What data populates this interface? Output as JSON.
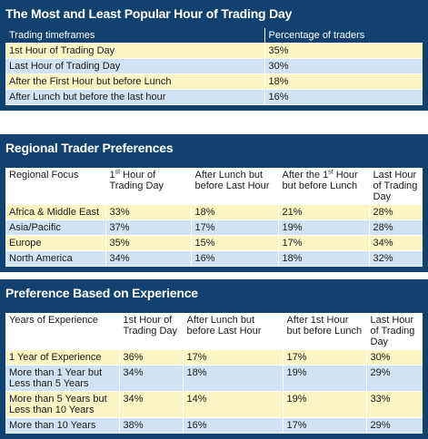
{
  "t1": {
    "title": "The Most and Least Popular Hour of Trading Day",
    "headers": [
      "Trading timeframes",
      "Percentage of traders"
    ],
    "rows": [
      [
        "1st Hour of Trading Day",
        "35%"
      ],
      [
        "Last Hour of Trading Day",
        "30%"
      ],
      [
        "After the First Hour but before Lunch",
        "18%"
      ],
      [
        "After Lunch but before the last hour",
        "16%"
      ]
    ]
  },
  "t2": {
    "title": "Regional Trader Preferences",
    "headers": [
      "Regional Focus",
      "1st Hour of Trading Day",
      "After Lunch but before Last Hour",
      "After the 1st Hour but before Lunch",
      "Last Hour of Trading Day"
    ],
    "rows": [
      [
        "Africa & Middle East",
        "33%",
        "18%",
        "21%",
        "28%"
      ],
      [
        "Asia/Pacific",
        "37%",
        "17%",
        "19%",
        "28%"
      ],
      [
        "Europe",
        "35%",
        "15%",
        "17%",
        "34%"
      ],
      [
        "North America",
        "34%",
        "16%",
        "18%",
        "32%"
      ]
    ]
  },
  "t3": {
    "title": "Preference Based on Experience",
    "headers": [
      "Years of Experience",
      "1st Hour of Trading Day",
      "After Lunch but before Last Hour",
      "After 1st Hour but before Lunch",
      "Last Hour of Trading Day"
    ],
    "rows": [
      [
        "1 Year of Experience",
        "36%",
        "17%",
        "17%",
        "30%"
      ],
      [
        "More than 1 Year but Less than 5 Years",
        "34%",
        "18%",
        "19%",
        "29%"
      ],
      [
        "More than 5 Years but Less than 10 Years",
        "34%",
        "14%",
        "19%",
        "33%"
      ],
      [
        "More than 10 Years",
        "38%",
        "16%",
        "17%",
        "29%"
      ]
    ]
  }
}
